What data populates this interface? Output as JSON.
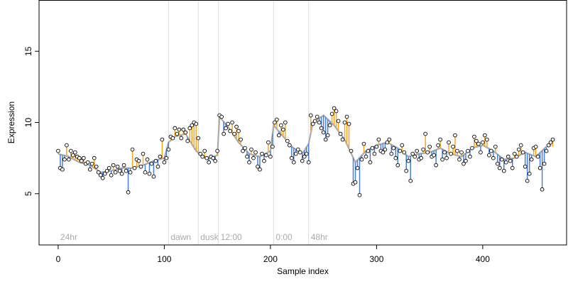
{
  "chart_data": {
    "type": "line",
    "xlabel": "Sample index",
    "ylabel": "Expression",
    "xlim": [
      -18,
      479
    ],
    "ylim": [
      1.4,
      18.6
    ],
    "x_ticks": [
      0,
      100,
      200,
      300,
      400
    ],
    "y_ticks": [
      5,
      10,
      15
    ],
    "grid": false,
    "colors": {
      "fit_line": "#aaaaaa",
      "residual_above": "#f5a623",
      "residual_below": "#4a7fd4",
      "phase_line": "#dddddd",
      "phase_label": "#aaaaaa",
      "point_stroke": "#000000",
      "point_fill": "#ffffff",
      "axis": "#000000"
    },
    "phase_markers": [
      {
        "x": 0,
        "label": "24hr"
      },
      {
        "x": 104,
        "label": "dawn"
      },
      {
        "x": 132,
        "label": "dusk"
      },
      {
        "x": 151,
        "label": "12:00"
      },
      {
        "x": 203,
        "label": "0:00"
      },
      {
        "x": 236,
        "label": "48hr"
      }
    ],
    "series": [
      {
        "type": "fitted",
        "color": "#aaaaaa",
        "points": [
          [
            0,
            7.8
          ],
          [
            10,
            7.6
          ],
          [
            20,
            7.2
          ],
          [
            30,
            7.0
          ],
          [
            40,
            6.5
          ],
          [
            50,
            6.6
          ],
          [
            60,
            6.8
          ],
          [
            70,
            6.8
          ],
          [
            80,
            7.0
          ],
          [
            90,
            7.3
          ],
          [
            100,
            7.5
          ],
          [
            104,
            8.6
          ],
          [
            110,
            9.0
          ],
          [
            120,
            9.2
          ],
          [
            130,
            8.0
          ],
          [
            140,
            7.4
          ],
          [
            150,
            7.7
          ],
          [
            152,
            10.4
          ],
          [
            160,
            9.7
          ],
          [
            170,
            8.6
          ],
          [
            180,
            7.8
          ],
          [
            190,
            7.6
          ],
          [
            200,
            8.0
          ],
          [
            203,
            9.8
          ],
          [
            210,
            9.2
          ],
          [
            220,
            8.3
          ],
          [
            230,
            7.8
          ],
          [
            236,
            8.5
          ],
          [
            240,
            10.0
          ],
          [
            250,
            10.5
          ],
          [
            260,
            9.8
          ],
          [
            270,
            8.8
          ],
          [
            280,
            7.2
          ],
          [
            290,
            8.0
          ],
          [
            300,
            8.4
          ],
          [
            310,
            8.6
          ],
          [
            320,
            8.2
          ],
          [
            330,
            7.6
          ],
          [
            340,
            7.8
          ],
          [
            350,
            7.9
          ],
          [
            360,
            8.2
          ],
          [
            370,
            7.8
          ],
          [
            380,
            7.6
          ],
          [
            390,
            8.2
          ],
          [
            400,
            8.4
          ],
          [
            410,
            8.0
          ],
          [
            420,
            7.4
          ],
          [
            430,
            7.5
          ],
          [
            440,
            7.9
          ],
          [
            450,
            7.6
          ],
          [
            460,
            8.3
          ]
        ]
      },
      {
        "type": "observed",
        "points": [
          [
            0,
            8.0
          ],
          [
            2,
            6.8
          ],
          [
            4,
            6.7
          ],
          [
            6,
            7.4
          ],
          [
            8,
            8.4
          ],
          [
            10,
            7.4
          ],
          [
            12,
            8.0
          ],
          [
            14,
            7.7
          ],
          [
            16,
            7.9
          ],
          [
            18,
            7.6
          ],
          [
            20,
            7.5
          ],
          [
            22,
            7.3
          ],
          [
            24,
            7.5
          ],
          [
            26,
            7.1
          ],
          [
            28,
            7.2
          ],
          [
            30,
            6.7
          ],
          [
            32,
            7.1
          ],
          [
            34,
            7.5
          ],
          [
            36,
            6.9
          ],
          [
            38,
            6.5
          ],
          [
            40,
            6.3
          ],
          [
            42,
            6.1
          ],
          [
            44,
            6.4
          ],
          [
            46,
            6.6
          ],
          [
            48,
            6.8
          ],
          [
            50,
            6.3
          ],
          [
            52,
            7.0
          ],
          [
            54,
            6.5
          ],
          [
            56,
            6.9
          ],
          [
            58,
            6.6
          ],
          [
            60,
            6.4
          ],
          [
            62,
            7.0
          ],
          [
            64,
            6.6
          ],
          [
            66,
            5.1
          ],
          [
            68,
            6.5
          ],
          [
            70,
            8.1
          ],
          [
            72,
            6.8
          ],
          [
            74,
            7.4
          ],
          [
            76,
            7.3
          ],
          [
            78,
            6.9
          ],
          [
            80,
            7.8
          ],
          [
            82,
            6.5
          ],
          [
            84,
            7.4
          ],
          [
            86,
            6.4
          ],
          [
            88,
            7.1
          ],
          [
            90,
            6.2
          ],
          [
            92,
            7.3
          ],
          [
            94,
            6.9
          ],
          [
            96,
            7.6
          ],
          [
            98,
            8.8
          ],
          [
            100,
            7.2
          ],
          [
            102,
            7.5
          ],
          [
            104,
            8.1
          ],
          [
            106,
            9.0
          ],
          [
            108,
            8.9
          ],
          [
            110,
            9.6
          ],
          [
            112,
            9.2
          ],
          [
            114,
            9.5
          ],
          [
            116,
            8.9
          ],
          [
            118,
            9.5
          ],
          [
            120,
            9.3
          ],
          [
            122,
            8.7
          ],
          [
            124,
            9.6
          ],
          [
            126,
            9.8
          ],
          [
            128,
            10.0
          ],
          [
            130,
            9.9
          ],
          [
            132,
            8.9
          ],
          [
            134,
            7.8
          ],
          [
            136,
            7.6
          ],
          [
            138,
            8.0
          ],
          [
            140,
            7.5
          ],
          [
            142,
            7.2
          ],
          [
            144,
            7.6
          ],
          [
            146,
            7.5
          ],
          [
            148,
            7.3
          ],
          [
            150,
            8.0
          ],
          [
            152,
            10.5
          ],
          [
            154,
            10.4
          ],
          [
            156,
            9.2
          ],
          [
            158,
            9.6
          ],
          [
            160,
            9.9
          ],
          [
            162,
            9.4
          ],
          [
            164,
            10.0
          ],
          [
            166,
            9.2
          ],
          [
            168,
            9.7
          ],
          [
            170,
            9.4
          ],
          [
            172,
            8.8
          ],
          [
            174,
            8.0
          ],
          [
            176,
            8.2
          ],
          [
            178,
            7.6
          ],
          [
            180,
            7.2
          ],
          [
            182,
            8.1
          ],
          [
            184,
            7.5
          ],
          [
            186,
            7.9
          ],
          [
            188,
            6.9
          ],
          [
            190,
            6.7
          ],
          [
            192,
            7.8
          ],
          [
            194,
            7.3
          ],
          [
            196,
            7.7
          ],
          [
            198,
            8.6
          ],
          [
            200,
            7.6
          ],
          [
            202,
            8.3
          ],
          [
            204,
            10.0
          ],
          [
            206,
            10.2
          ],
          [
            208,
            9.1
          ],
          [
            210,
            9.8
          ],
          [
            212,
            9.5
          ],
          [
            214,
            10.0
          ],
          [
            216,
            8.7
          ],
          [
            218,
            8.4
          ],
          [
            220,
            7.5
          ],
          [
            222,
            7.2
          ],
          [
            224,
            7.8
          ],
          [
            226,
            8.1
          ],
          [
            228,
            7.9
          ],
          [
            230,
            7.3
          ],
          [
            232,
            7.6
          ],
          [
            234,
            7.8
          ],
          [
            236,
            7.2
          ],
          [
            238,
            10.5
          ],
          [
            240,
            9.9
          ],
          [
            242,
            10.1
          ],
          [
            244,
            10.4
          ],
          [
            246,
            10.0
          ],
          [
            248,
            9.6
          ],
          [
            250,
            9.3
          ],
          [
            252,
            8.8
          ],
          [
            254,
            9.1
          ],
          [
            256,
            9.8
          ],
          [
            258,
            10.6
          ],
          [
            260,
            11.0
          ],
          [
            262,
            10.8
          ],
          [
            264,
            10.1
          ],
          [
            266,
            9.2
          ],
          [
            268,
            8.8
          ],
          [
            270,
            10.0
          ],
          [
            272,
            10.4
          ],
          [
            274,
            9.9
          ],
          [
            276,
            8.0
          ],
          [
            278,
            5.7
          ],
          [
            280,
            5.8
          ],
          [
            282,
            6.8
          ],
          [
            284,
            4.9
          ],
          [
            286,
            7.4
          ],
          [
            288,
            8.5
          ],
          [
            290,
            7.6
          ],
          [
            292,
            8.0
          ],
          [
            294,
            7.2
          ],
          [
            296,
            8.2
          ],
          [
            298,
            7.8
          ],
          [
            300,
            8.3
          ],
          [
            302,
            8.8
          ],
          [
            304,
            8.0
          ],
          [
            306,
            7.9
          ],
          [
            308,
            8.1
          ],
          [
            310,
            8.6
          ],
          [
            312,
            8.8
          ],
          [
            314,
            7.8
          ],
          [
            316,
            8.2
          ],
          [
            318,
            7.5
          ],
          [
            320,
            7.0
          ],
          [
            322,
            8.0
          ],
          [
            324,
            8.4
          ],
          [
            326,
            7.9
          ],
          [
            328,
            6.6
          ],
          [
            330,
            7.3
          ],
          [
            332,
            5.9
          ],
          [
            334,
            7.8
          ],
          [
            336,
            7.6
          ],
          [
            338,
            8.0
          ],
          [
            340,
            7.4
          ],
          [
            342,
            7.5
          ],
          [
            344,
            8.1
          ],
          [
            346,
            9.2
          ],
          [
            348,
            7.9
          ],
          [
            350,
            8.3
          ],
          [
            352,
            7.6
          ],
          [
            354,
            7.7
          ],
          [
            356,
            7.0
          ],
          [
            358,
            8.4
          ],
          [
            360,
            8.8
          ],
          [
            362,
            7.4
          ],
          [
            364,
            7.9
          ],
          [
            366,
            7.5
          ],
          [
            368,
            8.6
          ],
          [
            370,
            7.8
          ],
          [
            372,
            8.3
          ],
          [
            374,
            9.1
          ],
          [
            376,
            8.0
          ],
          [
            378,
            7.4
          ],
          [
            380,
            7.9
          ],
          [
            382,
            7.1
          ],
          [
            384,
            7.3
          ],
          [
            386,
            8.0
          ],
          [
            388,
            7.6
          ],
          [
            390,
            8.2
          ],
          [
            392,
            9.0
          ],
          [
            394,
            8.7
          ],
          [
            396,
            8.5
          ],
          [
            398,
            7.9
          ],
          [
            400,
            8.6
          ],
          [
            402,
            9.1
          ],
          [
            404,
            8.8
          ],
          [
            406,
            7.7
          ],
          [
            408,
            8.0
          ],
          [
            410,
            7.5
          ],
          [
            412,
            8.3
          ],
          [
            414,
            7.1
          ],
          [
            416,
            6.8
          ],
          [
            418,
            7.4
          ],
          [
            420,
            6.6
          ],
          [
            422,
            7.2
          ],
          [
            424,
            7.6
          ],
          [
            426,
            7.3
          ],
          [
            428,
            6.8
          ],
          [
            430,
            7.8
          ],
          [
            432,
            7.6
          ],
          [
            434,
            8.1
          ],
          [
            436,
            8.4
          ],
          [
            438,
            7.9
          ],
          [
            440,
            6.9
          ],
          [
            442,
            5.9
          ],
          [
            444,
            6.4
          ],
          [
            446,
            7.4
          ],
          [
            448,
            8.2
          ],
          [
            450,
            8.3
          ],
          [
            452,
            7.6
          ],
          [
            454,
            6.8
          ],
          [
            456,
            5.3
          ],
          [
            458,
            7.1
          ],
          [
            460,
            8.0
          ],
          [
            462,
            8.4
          ],
          [
            464,
            8.6
          ],
          [
            466,
            8.8
          ]
        ]
      }
    ]
  }
}
